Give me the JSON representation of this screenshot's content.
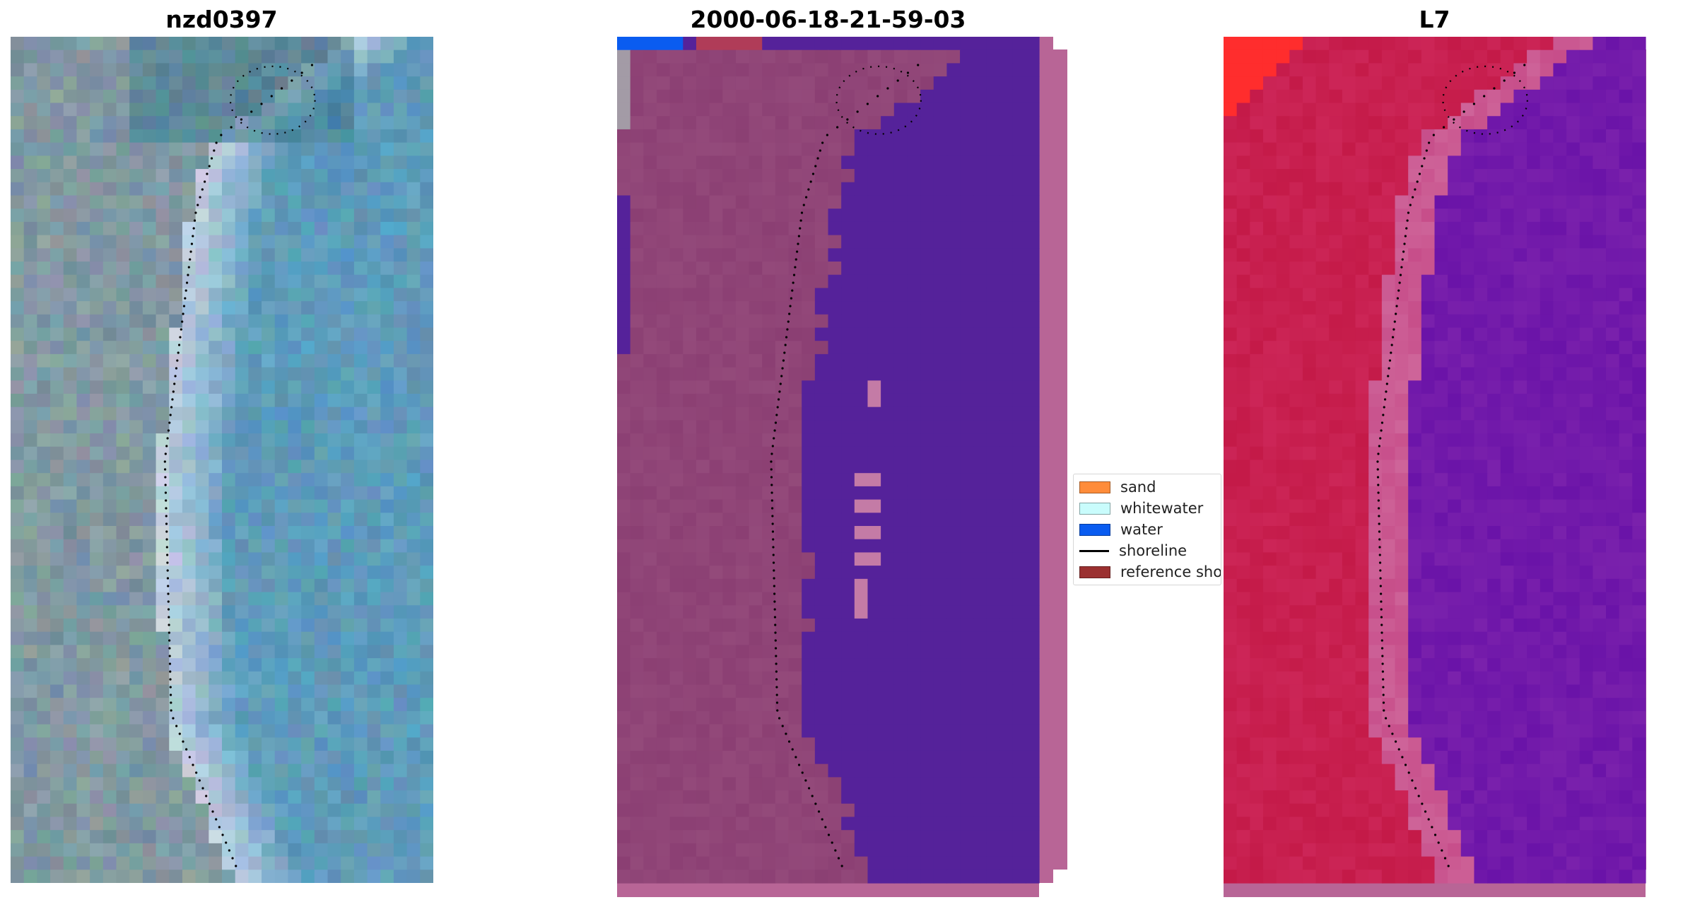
{
  "panels": [
    {
      "title": "nzd0397",
      "style": "rgb",
      "colors": {
        "base": "#5f8aa0",
        "land": "#8c9ea3",
        "sea": "#5e9fc0",
        "beach": "#cfd6e4"
      }
    },
    {
      "title": "2000-06-18-21-59-03",
      "style": "classified",
      "colors": {
        "land": "#8b3f73",
        "water": "#55229a",
        "frame": "#b86596",
        "sand_patch": "#c47ba6"
      }
    },
    {
      "title": "L7",
      "style": "falsecolor",
      "colors": {
        "land": "#c41a48",
        "sea": "#6a13a8",
        "beach": "#c74e8a",
        "corner": "#ff2d2d"
      }
    }
  ],
  "legend": {
    "items": [
      {
        "label": "sand",
        "type": "patch",
        "color": "#ff8c3a"
      },
      {
        "label": "whitewater",
        "type": "patch",
        "color": "#c9fcfc"
      },
      {
        "label": "water",
        "type": "patch",
        "color": "#0a5cf0"
      },
      {
        "label": "shoreline",
        "type": "line",
        "color": "#000000"
      },
      {
        "label": "reference sho",
        "type": "patch",
        "color": "#9b3030"
      }
    ]
  }
}
